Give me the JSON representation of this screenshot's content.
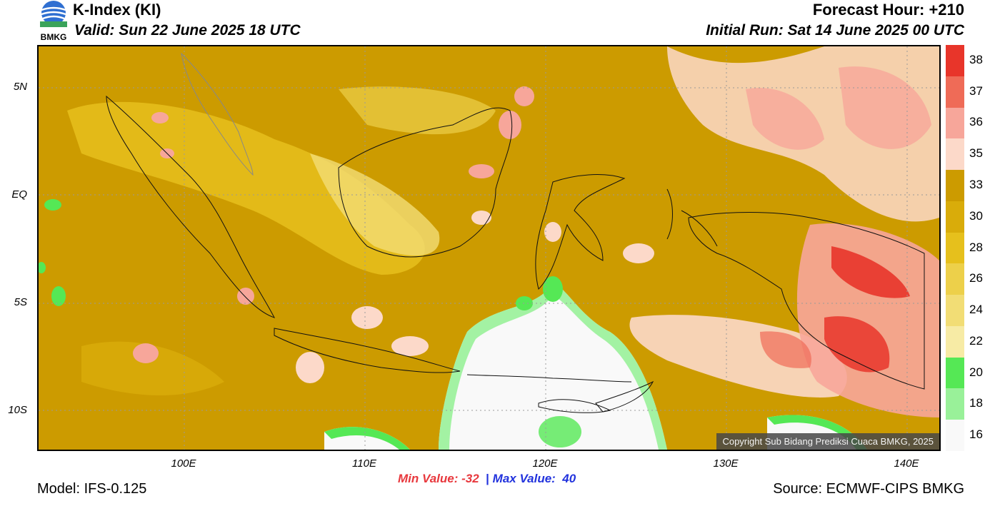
{
  "header": {
    "title": "K-Index (KI)",
    "valid": "Valid: Sun 22 June 2025 18 UTC",
    "forecast_hour": "Forecast Hour: +210",
    "initial_run": "Initial Run: Sat 14 June 2025 00 UTC",
    "logo_text": "BMKG"
  },
  "map": {
    "lat_labels": [
      "5N",
      "EQ",
      "5S",
      "10S"
    ],
    "lon_labels": [
      "100E",
      "110E",
      "120E",
      "130E",
      "140E"
    ],
    "copyright": "Copyright Sub Bidang Prediksi Cuaca BMKG, 2025",
    "base_color": "#cc9b00"
  },
  "colorbar": {
    "labels": [
      "38",
      "37",
      "36",
      "35",
      "33",
      "30",
      "28",
      "26",
      "24",
      "22",
      "20",
      "18",
      "16"
    ],
    "colors": [
      "#e8352a",
      "#ef6b57",
      "#f7a69a",
      "#fcd9c9",
      "#cc9b00",
      "#d9ac0a",
      "#e6c01c",
      "#edd04a",
      "#f2dd75",
      "#f7eba5",
      "#55e855",
      "#99f199",
      "#f9f9f9"
    ]
  },
  "stats": {
    "min_label": "Min Value:",
    "min_value": "-32",
    "separator": "|",
    "max_label": "Max Value:",
    "max_value": "40"
  },
  "footer": {
    "model": "Model: IFS-0.125",
    "source": "Source: ECMWF-CIPS BMKG"
  }
}
